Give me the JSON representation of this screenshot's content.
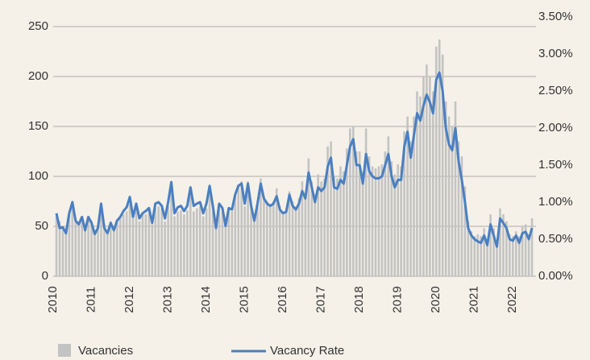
{
  "chart_data": {
    "type": "bar-line",
    "categories": [
      "2010",
      null,
      null,
      null,
      null,
      null,
      null,
      null,
      null,
      null,
      null,
      null,
      "2011",
      null,
      null,
      null,
      null,
      null,
      null,
      null,
      null,
      null,
      null,
      null,
      "2012",
      null,
      null,
      null,
      null,
      null,
      null,
      null,
      null,
      null,
      null,
      null,
      "2013",
      null,
      null,
      null,
      null,
      null,
      null,
      null,
      null,
      null,
      null,
      null,
      "2014",
      null,
      null,
      null,
      null,
      null,
      null,
      null,
      null,
      null,
      null,
      null,
      "2015",
      null,
      null,
      null,
      null,
      null,
      null,
      null,
      null,
      null,
      null,
      null,
      "2016",
      null,
      null,
      null,
      null,
      null,
      null,
      null,
      null,
      null,
      null,
      null,
      "2017",
      null,
      null,
      null,
      null,
      null,
      null,
      null,
      null,
      null,
      null,
      null,
      "2018",
      null,
      null,
      null,
      null,
      null,
      null,
      null,
      null,
      null,
      null,
      null,
      "2019",
      null,
      null,
      null,
      null,
      null,
      null,
      null,
      null,
      null,
      null,
      null,
      "2020",
      null,
      null,
      null,
      null,
      null,
      null,
      null,
      null,
      null,
      null,
      null,
      "2021",
      null,
      null,
      null,
      null,
      null,
      null,
      null,
      null,
      null,
      null,
      null,
      "2022",
      null,
      null,
      null,
      null,
      null
    ],
    "series": [
      {
        "name": "Vacancies",
        "type": "bar",
        "color": "#c3c3c3",
        "values": [
          60,
          55,
          50,
          48,
          62,
          75,
          58,
          50,
          55,
          48,
          60,
          55,
          45,
          50,
          68,
          52,
          45,
          55,
          48,
          55,
          58,
          62,
          65,
          72,
          58,
          68,
          55,
          62,
          62,
          66,
          52,
          68,
          70,
          68,
          55,
          70,
          88,
          60,
          65,
          66,
          62,
          66,
          80,
          65,
          68,
          70,
          60,
          68,
          82,
          65,
          50,
          68,
          64,
          52,
          66,
          65,
          80,
          90,
          95,
          70,
          95,
          70,
          58,
          72,
          98,
          80,
          75,
          72,
          75,
          88,
          70,
          65,
          68,
          85,
          75,
          70,
          78,
          95,
          82,
          118,
          95,
          82,
          102,
          95,
          98,
          130,
          135,
          100,
          98,
          110,
          105,
          128,
          148,
          150,
          125,
          125,
          105,
          148,
          120,
          110,
          108,
          110,
          112,
          125,
          140,
          115,
          102,
          112,
          110,
          145,
          160,
          135,
          160,
          185,
          180,
          200,
          212,
          200,
          185,
          230,
          237,
          222,
          175,
          160,
          150,
          175,
          135,
          120,
          90,
          55,
          45,
          40,
          42,
          40,
          48,
          38,
          62,
          48,
          35,
          68,
          62,
          55,
          42,
          40,
          45,
          40,
          50,
          52,
          42,
          58
        ]
      },
      {
        "name": "Vacancy Rate",
        "type": "line",
        "axis": "y2",
        "color": "#4a7fc1",
        "values": [
          0.85,
          0.65,
          0.66,
          0.58,
          0.85,
          1.0,
          0.75,
          0.7,
          0.8,
          0.62,
          0.8,
          0.72,
          0.57,
          0.65,
          0.98,
          0.65,
          0.58,
          0.72,
          0.62,
          0.75,
          0.8,
          0.88,
          0.93,
          1.07,
          0.8,
          0.98,
          0.78,
          0.85,
          0.88,
          0.92,
          0.72,
          0.98,
          1.0,
          0.95,
          0.78,
          1.0,
          1.27,
          0.85,
          0.93,
          0.95,
          0.88,
          0.95,
          1.2,
          0.95,
          0.98,
          1.0,
          0.85,
          0.98,
          1.22,
          0.95,
          0.65,
          0.98,
          0.92,
          0.68,
          0.92,
          0.9,
          1.1,
          1.22,
          1.25,
          0.98,
          1.25,
          0.95,
          0.75,
          0.98,
          1.25,
          1.05,
          0.98,
          0.95,
          0.98,
          1.08,
          0.9,
          0.85,
          0.87,
          1.1,
          0.95,
          0.9,
          0.98,
          1.15,
          1.05,
          1.4,
          1.2,
          1.0,
          1.2,
          1.15,
          1.2,
          1.48,
          1.6,
          1.2,
          1.18,
          1.3,
          1.25,
          1.5,
          1.75,
          1.85,
          1.5,
          1.5,
          1.25,
          1.65,
          1.42,
          1.35,
          1.32,
          1.32,
          1.35,
          1.5,
          1.65,
          1.35,
          1.2,
          1.3,
          1.3,
          1.75,
          1.95,
          1.6,
          1.9,
          2.2,
          2.1,
          2.3,
          2.45,
          2.35,
          2.2,
          2.65,
          2.75,
          2.5,
          2.0,
          1.78,
          1.7,
          2.0,
          1.55,
          1.3,
          1.0,
          0.65,
          0.55,
          0.5,
          0.47,
          0.45,
          0.55,
          0.42,
          0.7,
          0.55,
          0.4,
          0.78,
          0.72,
          0.65,
          0.5,
          0.48,
          0.55,
          0.45,
          0.58,
          0.6,
          0.5,
          0.65
        ]
      }
    ],
    "ylim": [
      0,
      250
    ],
    "yticks": [
      0,
      50,
      100,
      150,
      200,
      250
    ],
    "y2lim": [
      0,
      3.5
    ],
    "y2ticks": [
      {
        "value": 0,
        "label": "0.00%"
      },
      {
        "value": 0.5,
        "label": "0.50%"
      },
      {
        "value": 1,
        "label": "1.00%"
      },
      {
        "value": 1.5,
        "label": "1.50%"
      },
      {
        "value": 2,
        "label": "2.00%"
      },
      {
        "value": 2.5,
        "label": "2.50%"
      },
      {
        "value": 3,
        "label": "3.00%"
      },
      {
        "value": 3.5,
        "label": "3.50%"
      }
    ],
    "grid": true,
    "legend": "bottom"
  }
}
